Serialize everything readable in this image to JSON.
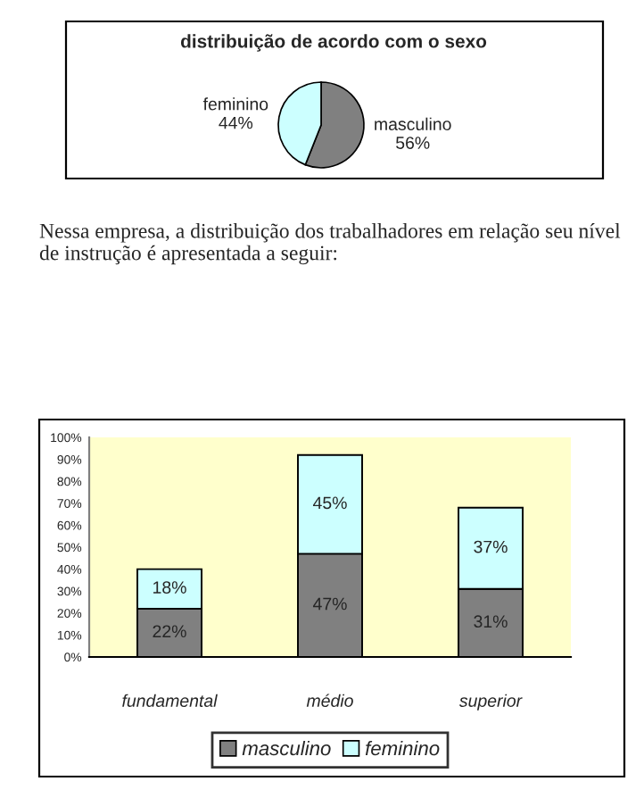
{
  "chart_data": [
    {
      "type": "pie",
      "title": "distribuição de acordo com o sexo",
      "categories": [
        "masculino",
        "feminino"
      ],
      "values": [
        56,
        44
      ],
      "colors": [
        "#808080",
        "#ccffff"
      ],
      "value_labels": [
        "56%",
        "44%"
      ]
    },
    {
      "type": "bar",
      "stacked": true,
      "annotations": [
        "Nessa empresa, a distribuição dos trabalhadores em relação seu nível de instrução é apresentada a seguir:"
      ],
      "categories": [
        "fundamental",
        "médio",
        "superior"
      ],
      "series": [
        {
          "name": "masculino",
          "color": "#808080",
          "values": [
            22,
            47,
            31
          ],
          "value_labels": [
            "22%",
            "47%",
            "31%"
          ]
        },
        {
          "name": "feminino",
          "color": "#ccffff",
          "values": [
            18,
            45,
            37
          ],
          "value_labels": [
            "18%",
            "45%",
            "37%"
          ]
        }
      ],
      "ylim": [
        0,
        100
      ],
      "yticks": [
        {
          "value": 0,
          "label": "0%"
        },
        {
          "value": 10,
          "label": "10%"
        },
        {
          "value": 20,
          "label": "20%"
        },
        {
          "value": 30,
          "label": "30%"
        },
        {
          "value": 40,
          "label": "40%"
        },
        {
          "value": 50,
          "label": "50%"
        },
        {
          "value": 60,
          "label": "60%"
        },
        {
          "value": 70,
          "label": "70%"
        },
        {
          "value": 80,
          "label": "80%"
        },
        {
          "value": 90,
          "label": "90%"
        },
        {
          "value": 100,
          "label": "100%"
        }
      ],
      "grid": false,
      "legend": "bottom"
    }
  ]
}
